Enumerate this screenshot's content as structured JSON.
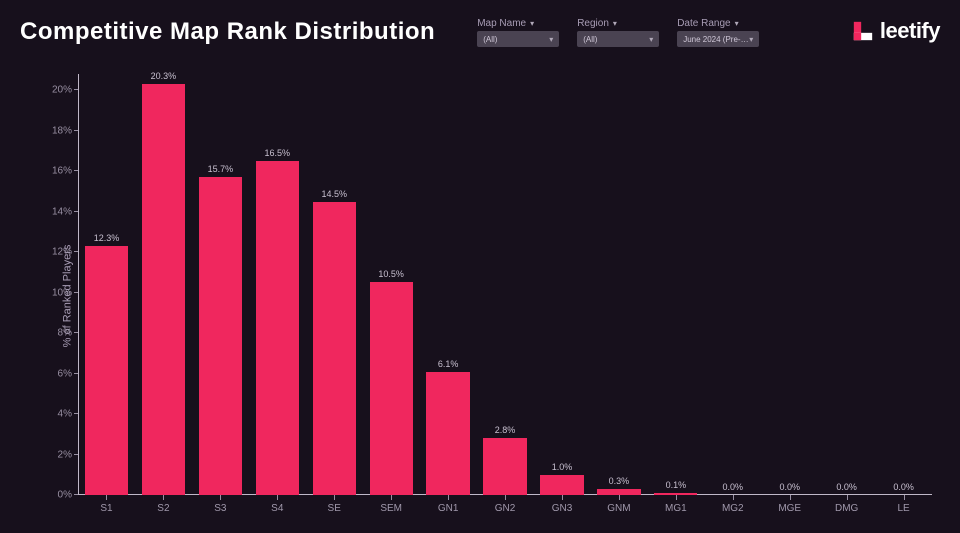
{
  "title": "Competitive Map Rank Distribution",
  "filters": [
    {
      "label": "Map Name",
      "value": "(All)"
    },
    {
      "label": "Region",
      "value": "(All)"
    },
    {
      "label": "Date Range",
      "value": "June 2024 (Pre-…"
    }
  ],
  "logo": {
    "text": "leetify",
    "accent": "#f0275e",
    "fg": "#ffffff"
  },
  "chart": {
    "type": "bar",
    "ylabel": "% of Ranked Players",
    "label_fontsize": 11,
    "tick_fontsize": 10,
    "value_fontsize": 9,
    "background_color": "#17101c",
    "axis_color": "#c0b8c8",
    "tick_color": "#988fa2",
    "text_color": "#c8c0d0",
    "bar_color": "#f0275e",
    "bar_width": 0.76,
    "ylim": [
      0,
      20.8
    ],
    "yticks": [
      0,
      2,
      4,
      6,
      8,
      10,
      12,
      14,
      16,
      18,
      20
    ],
    "ytick_labels": [
      "0%",
      "2%",
      "4%",
      "6%",
      "8%",
      "10%",
      "12%",
      "14%",
      "16%",
      "18%",
      "20%"
    ],
    "categories": [
      "S1",
      "S2",
      "S3",
      "S4",
      "SE",
      "SEM",
      "GN1",
      "GN2",
      "GN3",
      "GNM",
      "MG1",
      "MG2",
      "MGE",
      "DMG",
      "LE"
    ],
    "values": [
      12.3,
      20.3,
      15.7,
      16.5,
      14.5,
      10.5,
      6.1,
      2.8,
      1.0,
      0.3,
      0.1,
      0.0,
      0.0,
      0.0,
      0.0
    ],
    "value_labels": [
      "12.3%",
      "20.3%",
      "15.7%",
      "16.5%",
      "14.5%",
      "10.5%",
      "6.1%",
      "2.8%",
      "1.0%",
      "0.3%",
      "0.1%",
      "0.0%",
      "0.0%",
      "0.0%",
      "0.0%"
    ]
  }
}
